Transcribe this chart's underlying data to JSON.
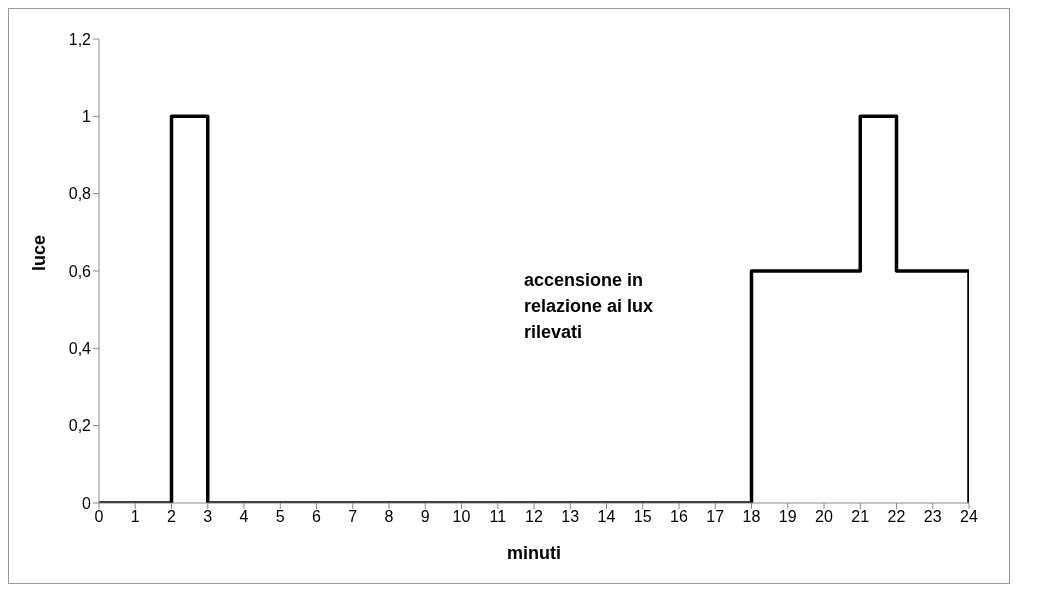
{
  "chart_data": {
    "type": "line",
    "xlabel": "minuti",
    "ylabel": "luce",
    "xlim": [
      0,
      24
    ],
    "xticks": [
      0,
      1,
      2,
      3,
      4,
      5,
      6,
      7,
      8,
      9,
      10,
      11,
      12,
      13,
      14,
      15,
      16,
      17,
      18,
      19,
      20,
      21,
      22,
      23,
      24
    ],
    "ylim": [
      0,
      1.2
    ],
    "yticks": [
      0,
      {
        "value": 0.2,
        "label": "0,2"
      },
      {
        "value": 0.4,
        "label": "0,4"
      },
      {
        "value": 0.6,
        "label": "0,6"
      },
      {
        "value": 0.8,
        "label": "0,8"
      },
      1,
      {
        "value": 1.2,
        "label": "1,2"
      }
    ],
    "series": [
      {
        "color": "#000000",
        "x": [
          0,
          2,
          2,
          3,
          3,
          18,
          18,
          21,
          21,
          22,
          22,
          24,
          24
        ],
        "values": [
          0,
          0,
          1,
          1,
          0,
          0,
          0.6,
          0.6,
          1,
          1,
          0.6,
          0.6,
          0
        ]
      }
    ],
    "annotations": [
      "accensione in relazione ai lux rilevati"
    ],
    "grid": false,
    "marker": "none",
    "line_style": "solid"
  }
}
